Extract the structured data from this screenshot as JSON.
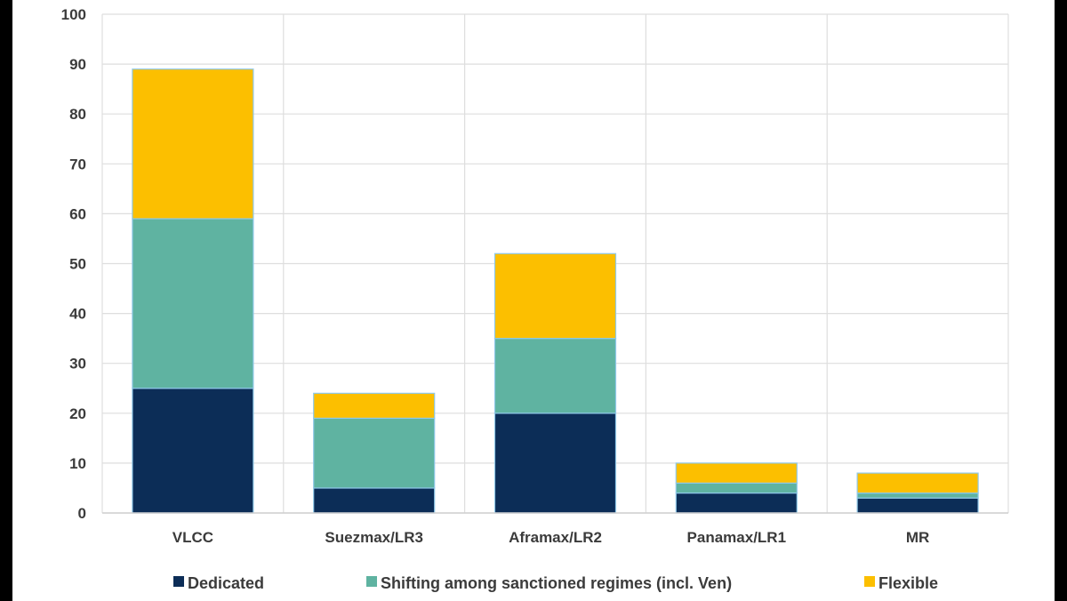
{
  "chart_data": {
    "type": "bar",
    "stacked": true,
    "categories": [
      "VLCC",
      "Suezmax/LR3",
      "Aframax/LR2",
      "Panamax/LR1",
      "MR"
    ],
    "series": [
      {
        "name": "Dedicated",
        "color": "#0c2d57",
        "values": [
          25,
          5,
          20,
          4,
          3
        ]
      },
      {
        "name": "Shifting among sanctioned regimes (incl. Ven)",
        "color": "#5fb3a1",
        "values": [
          34,
          14,
          15,
          2,
          1
        ]
      },
      {
        "name": "Flexible",
        "color": "#fcbf00",
        "values": [
          30,
          5,
          17,
          4,
          4
        ]
      }
    ],
    "yticks": [
      0,
      10,
      20,
      30,
      40,
      50,
      60,
      70,
      80,
      90,
      100
    ],
    "ylim": [
      0,
      100
    ],
    "grid": true,
    "legend_position": "bottom",
    "title": "",
    "xlabel": "",
    "ylabel": ""
  }
}
